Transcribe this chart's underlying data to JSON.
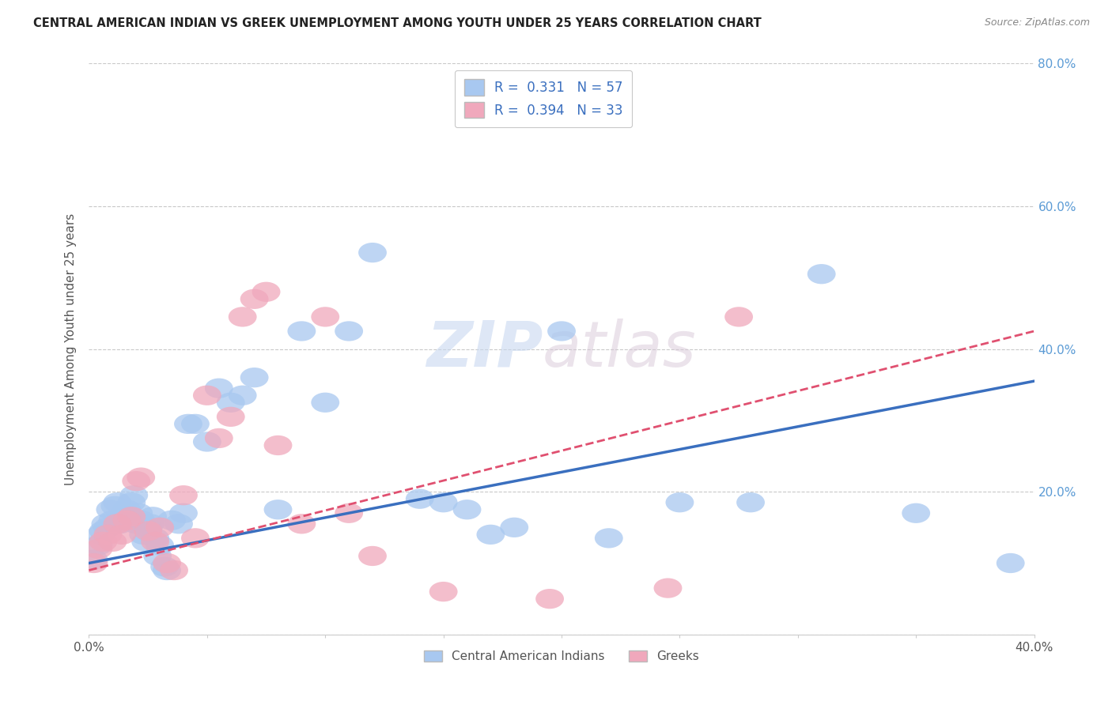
{
  "title": "CENTRAL AMERICAN INDIAN VS GREEK UNEMPLOYMENT AMONG YOUTH UNDER 25 YEARS CORRELATION CHART",
  "source": "Source: ZipAtlas.com",
  "ylabel": "Unemployment Among Youth under 25 years",
  "legend_label1": "Central American Indians",
  "legend_label2": "Greeks",
  "r1": 0.331,
  "n1": 57,
  "r2": 0.394,
  "n2": 33,
  "color1": "#A8C8F0",
  "color2": "#F0A8BC",
  "line_color1": "#3A6FBF",
  "line_color2": "#E05070",
  "watermark_zip": "ZIP",
  "watermark_atlas": "atlas",
  "xlim": [
    0.0,
    0.4
  ],
  "ylim": [
    0.0,
    0.8
  ],
  "xticks": [
    0.0,
    0.05,
    0.1,
    0.15,
    0.2,
    0.25,
    0.3,
    0.35,
    0.4
  ],
  "yticks": [
    0.0,
    0.2,
    0.4,
    0.6,
    0.8
  ],
  "blue_x": [
    0.002,
    0.004,
    0.005,
    0.006,
    0.007,
    0.008,
    0.009,
    0.01,
    0.011,
    0.012,
    0.013,
    0.014,
    0.015,
    0.016,
    0.017,
    0.018,
    0.019,
    0.02,
    0.021,
    0.022,
    0.023,
    0.024,
    0.025,
    0.026,
    0.027,
    0.028,
    0.029,
    0.03,
    0.032,
    0.033,
    0.035,
    0.038,
    0.04,
    0.042,
    0.045,
    0.05,
    0.055,
    0.06,
    0.065,
    0.07,
    0.08,
    0.09,
    0.1,
    0.11,
    0.12,
    0.14,
    0.15,
    0.16,
    0.17,
    0.18,
    0.2,
    0.22,
    0.25,
    0.28,
    0.31,
    0.35,
    0.39
  ],
  "blue_y": [
    0.105,
    0.125,
    0.14,
    0.145,
    0.155,
    0.15,
    0.175,
    0.16,
    0.18,
    0.185,
    0.155,
    0.16,
    0.17,
    0.175,
    0.165,
    0.185,
    0.195,
    0.155,
    0.17,
    0.16,
    0.14,
    0.13,
    0.15,
    0.155,
    0.165,
    0.135,
    0.11,
    0.125,
    0.095,
    0.09,
    0.16,
    0.155,
    0.17,
    0.295,
    0.295,
    0.27,
    0.345,
    0.325,
    0.335,
    0.36,
    0.175,
    0.425,
    0.325,
    0.425,
    0.535,
    0.19,
    0.185,
    0.175,
    0.14,
    0.15,
    0.425,
    0.135,
    0.185,
    0.185,
    0.505,
    0.17,
    0.1
  ],
  "pink_x": [
    0.002,
    0.004,
    0.006,
    0.008,
    0.01,
    0.012,
    0.014,
    0.016,
    0.018,
    0.02,
    0.022,
    0.025,
    0.028,
    0.03,
    0.033,
    0.036,
    0.04,
    0.045,
    0.05,
    0.055,
    0.06,
    0.065,
    0.07,
    0.075,
    0.08,
    0.09,
    0.1,
    0.11,
    0.12,
    0.15,
    0.195,
    0.245,
    0.275
  ],
  "pink_y": [
    0.1,
    0.12,
    0.13,
    0.14,
    0.13,
    0.155,
    0.14,
    0.16,
    0.165,
    0.215,
    0.22,
    0.145,
    0.13,
    0.15,
    0.1,
    0.09,
    0.195,
    0.135,
    0.335,
    0.275,
    0.305,
    0.445,
    0.47,
    0.48,
    0.265,
    0.155,
    0.445,
    0.17,
    0.11,
    0.06,
    0.05,
    0.065,
    0.445
  ],
  "blue_line_x0": 0.0,
  "blue_line_y0": 0.1,
  "blue_line_x1": 0.4,
  "blue_line_y1": 0.355,
  "pink_line_x0": 0.0,
  "pink_line_y0": 0.09,
  "pink_line_x1": 0.4,
  "pink_line_y1": 0.425
}
